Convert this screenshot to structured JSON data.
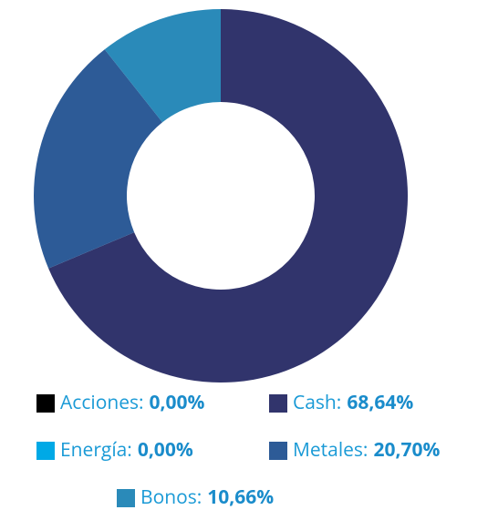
{
  "chart_data": {
    "type": "donut",
    "categories": [
      "Acciones:",
      "Cash:",
      "Energía:",
      "Metales:",
      "Bonos:"
    ],
    "values": [
      0,
      68.64,
      0,
      20.7,
      10.66
    ],
    "value_labels": [
      "0,00%",
      "68,64%",
      "0,00%",
      "20,70%",
      "10,66%"
    ],
    "colors": [
      "#000000",
      "#31346c",
      "#00a9e6",
      "#2d5b97",
      "#2a8ab9"
    ],
    "legend": "bottom"
  }
}
